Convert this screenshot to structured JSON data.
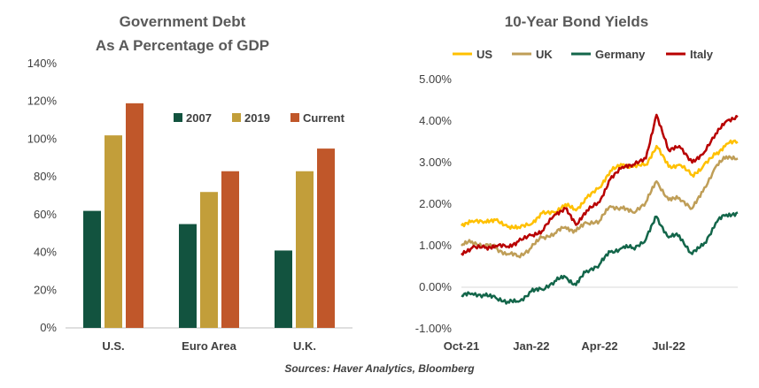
{
  "source": "Sources: Haver Analytics, Bloomberg",
  "chart_data": [
    {
      "type": "bar",
      "title": "Government Debt",
      "subtitle": "As A Percentage of GDP",
      "categories": [
        "U.S.",
        "Euro Area",
        "U.K."
      ],
      "series": [
        {
          "name": "2007",
          "values": [
            62,
            55,
            41
          ],
          "color": "#12533F"
        },
        {
          "name": "2019",
          "values": [
            102,
            72,
            83
          ],
          "color": "#C29E3A"
        },
        {
          "name": "Current",
          "values": [
            119,
            83,
            95
          ],
          "color": "#C0572A"
        }
      ],
      "ylim": [
        0,
        140
      ],
      "yticks": [
        "0%",
        "20%",
        "40%",
        "60%",
        "80%",
        "100%",
        "120%",
        "140%"
      ],
      "grid": false,
      "legend": "top-right"
    },
    {
      "type": "line",
      "title": "10-Year Bond Yields",
      "xticks": [
        "Oct-21",
        "Jan-22",
        "Apr-22",
        "Jul-22"
      ],
      "yticks": [
        "-1.00%",
        "0.00%",
        "1.00%",
        "2.00%",
        "3.00%",
        "4.00%",
        "5.00%"
      ],
      "ylim": [
        -1.0,
        5.0
      ],
      "grid": false,
      "legend": "top",
      "x": [
        "2021-10-01",
        "2021-10-15",
        "2021-11-01",
        "2021-11-15",
        "2021-12-01",
        "2021-12-15",
        "2022-01-01",
        "2022-01-15",
        "2022-02-01",
        "2022-02-15",
        "2022-03-01",
        "2022-03-15",
        "2022-04-01",
        "2022-04-15",
        "2022-05-01",
        "2022-05-15",
        "2022-06-01",
        "2022-06-15",
        "2022-07-01",
        "2022-07-15",
        "2022-08-01",
        "2022-08-15",
        "2022-09-01",
        "2022-09-15",
        "2022-09-30"
      ],
      "series": [
        {
          "name": "US",
          "color": "#FFC000",
          "values": [
            1.48,
            1.6,
            1.58,
            1.62,
            1.45,
            1.45,
            1.52,
            1.78,
            1.8,
            2.0,
            1.85,
            2.15,
            2.4,
            2.8,
            2.95,
            2.9,
            2.95,
            3.4,
            2.9,
            2.95,
            2.7,
            2.9,
            3.2,
            3.45,
            3.5
          ]
        },
        {
          "name": "UK",
          "color": "#BF9E57",
          "values": [
            1.0,
            1.1,
            1.0,
            0.95,
            0.8,
            0.75,
            0.95,
            1.2,
            1.3,
            1.45,
            1.35,
            1.55,
            1.6,
            1.95,
            1.9,
            1.8,
            2.05,
            2.55,
            2.1,
            2.15,
            1.9,
            2.3,
            2.9,
            3.15,
            3.1
          ]
        },
        {
          "name": "Germany",
          "color": "#13664A",
          "values": [
            -0.2,
            -0.15,
            -0.2,
            -0.25,
            -0.35,
            -0.35,
            -0.1,
            -0.05,
            0.15,
            0.25,
            0.05,
            0.4,
            0.55,
            0.85,
            0.95,
            0.95,
            1.15,
            1.7,
            1.2,
            1.25,
            0.8,
            1.0,
            1.55,
            1.75,
            1.8
          ]
        },
        {
          "name": "Italy",
          "color": "#B80000",
          "values": [
            0.82,
            0.95,
            0.95,
            1.0,
            0.98,
            1.1,
            1.25,
            1.35,
            1.75,
            1.9,
            1.5,
            1.85,
            2.05,
            2.6,
            2.9,
            2.95,
            3.1,
            4.15,
            3.3,
            3.4,
            3.0,
            3.2,
            3.7,
            4.0,
            4.1
          ]
        }
      ]
    }
  ]
}
